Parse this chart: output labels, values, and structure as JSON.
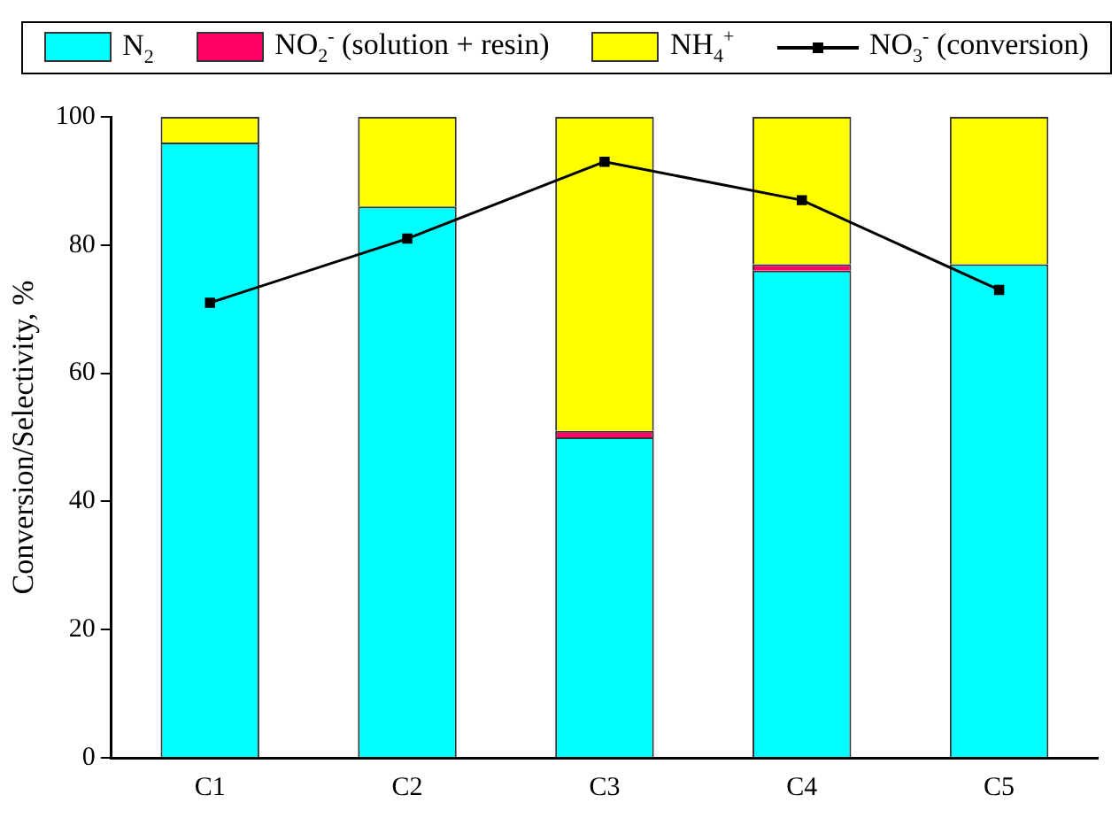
{
  "chart_data": {
    "type": "bar",
    "stacked": true,
    "ylabel": "Conversion/Selectivity, %",
    "categories": [
      "C1",
      "C2",
      "C3",
      "C4",
      "C5"
    ],
    "ylim": [
      0,
      100
    ],
    "yticks": [
      0,
      20,
      40,
      60,
      80,
      100
    ],
    "grid": false,
    "legend": "top",
    "series": [
      {
        "name": "N$_{2}$",
        "color": "#00ffff",
        "values": [
          96,
          86,
          50,
          76,
          77
        ]
      },
      {
        "name": "NO$_{2}$$^{-}$ (solution + resin)",
        "color": "#ff0066",
        "values": [
          0,
          0,
          1,
          1,
          0
        ]
      },
      {
        "name": "NH$_{4}$$^{+}$",
        "color": "#ffff00",
        "values": [
          4,
          14,
          49,
          23,
          23
        ]
      },
      {
        "name": "NO$_{3}$$^{-}$ (conversion)",
        "type": "line",
        "color": "#000000",
        "marker": "square",
        "values": [
          71,
          81,
          93,
          87,
          73
        ]
      }
    ]
  }
}
